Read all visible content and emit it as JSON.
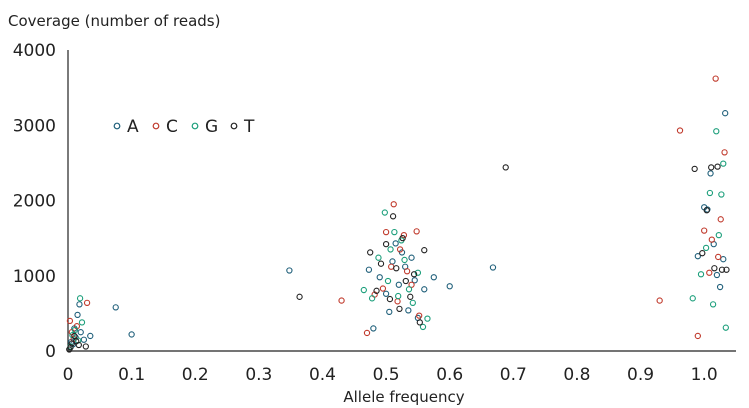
{
  "chart_data": {
    "type": "scatter",
    "title": "",
    "ylabel": "Coverage (number of reads)",
    "xlabel": "Allele frequency",
    "xlim": [
      0,
      1.05
    ],
    "ylim": [
      0,
      4000
    ],
    "grid": false,
    "legend_position": "top-left",
    "x_ticks": [
      "0",
      "0.1",
      "0.2",
      "0.3",
      "0.4",
      "0.5",
      "0.6",
      "0.7",
      "0.8",
      "0.9",
      "1.0"
    ],
    "y_ticks": [
      "0",
      "1000",
      "2000",
      "3000",
      "4000"
    ],
    "series": [
      {
        "name": "A",
        "color": "#1f5f7a",
        "x": [
          0.005,
          0.01,
          0.012,
          0.015,
          0.02,
          0.008,
          0.018,
          0.025,
          0.035,
          0.075,
          0.1,
          0.348,
          0.473,
          0.48,
          0.49,
          0.5,
          0.505,
          0.51,
          0.515,
          0.52,
          0.525,
          0.53,
          0.535,
          0.54,
          0.545,
          0.55,
          0.56,
          0.575,
          0.6,
          0.668,
          0.99,
          1.0,
          1.005,
          1.01,
          1.015,
          1.02,
          1.025,
          1.03,
          1.033
        ],
        "y": [
          120,
          300,
          180,
          480,
          250,
          90,
          620,
          150,
          200,
          580,
          220,
          1070,
          1080,
          300,
          980,
          760,
          520,
          1190,
          1430,
          880,
          1310,
          1120,
          540,
          1240,
          940,
          440,
          820,
          980,
          860,
          1110,
          1260,
          1910,
          1880,
          2360,
          1420,
          1010,
          850,
          1220,
          3160
        ]
      },
      {
        "name": "C",
        "color": "#c0392b",
        "x": [
          0.003,
          0.006,
          0.009,
          0.014,
          0.03,
          0.43,
          0.47,
          0.482,
          0.495,
          0.5,
          0.508,
          0.512,
          0.518,
          0.522,
          0.528,
          0.533,
          0.54,
          0.548,
          0.552,
          0.93,
          0.962,
          0.99,
          1.0,
          1.008,
          1.012,
          1.018,
          1.022,
          1.026,
          1.032
        ],
        "y": [
          400,
          250,
          160,
          330,
          640,
          670,
          240,
          750,
          830,
          1580,
          1120,
          1950,
          660,
          1350,
          1540,
          1060,
          880,
          1590,
          470,
          670,
          2930,
          200,
          1600,
          1040,
          1480,
          3620,
          1250,
          1750,
          2640
        ]
      },
      {
        "name": "G",
        "color": "#1a9e7a",
        "x": [
          0.004,
          0.007,
          0.011,
          0.016,
          0.019,
          0.022,
          0.465,
          0.478,
          0.488,
          0.498,
          0.503,
          0.507,
          0.513,
          0.519,
          0.524,
          0.529,
          0.536,
          0.542,
          0.55,
          0.558,
          0.565,
          0.982,
          0.995,
          1.003,
          1.009,
          1.014,
          1.019,
          1.023,
          1.027,
          1.03,
          1.034
        ],
        "y": [
          60,
          210,
          280,
          140,
          700,
          380,
          810,
          700,
          1240,
          1840,
          930,
          1350,
          1580,
          730,
          1470,
          1210,
          820,
          640,
          1040,
          320,
          430,
          700,
          1020,
          1370,
          2100,
          620,
          2920,
          1540,
          2080,
          2490,
          310
        ]
      },
      {
        "name": "T",
        "color": "#222222",
        "x": [
          0.002,
          0.004,
          0.006,
          0.01,
          0.013,
          0.017,
          0.028,
          0.364,
          0.475,
          0.485,
          0.492,
          0.5,
          0.506,
          0.511,
          0.516,
          0.521,
          0.526,
          0.531,
          0.538,
          0.544,
          0.553,
          0.56,
          0.688,
          0.985,
          0.997,
          1.004,
          1.011,
          1.016,
          1.021,
          1.028,
          1.035
        ],
        "y": [
          20,
          50,
          100,
          200,
          130,
          80,
          60,
          720,
          1310,
          800,
          1160,
          1420,
          690,
          1790,
          1100,
          560,
          1500,
          930,
          720,
          1020,
          380,
          1340,
          2440,
          2420,
          1300,
          1870,
          2440,
          1100,
          2450,
          1080,
          1080
        ]
      }
    ]
  }
}
